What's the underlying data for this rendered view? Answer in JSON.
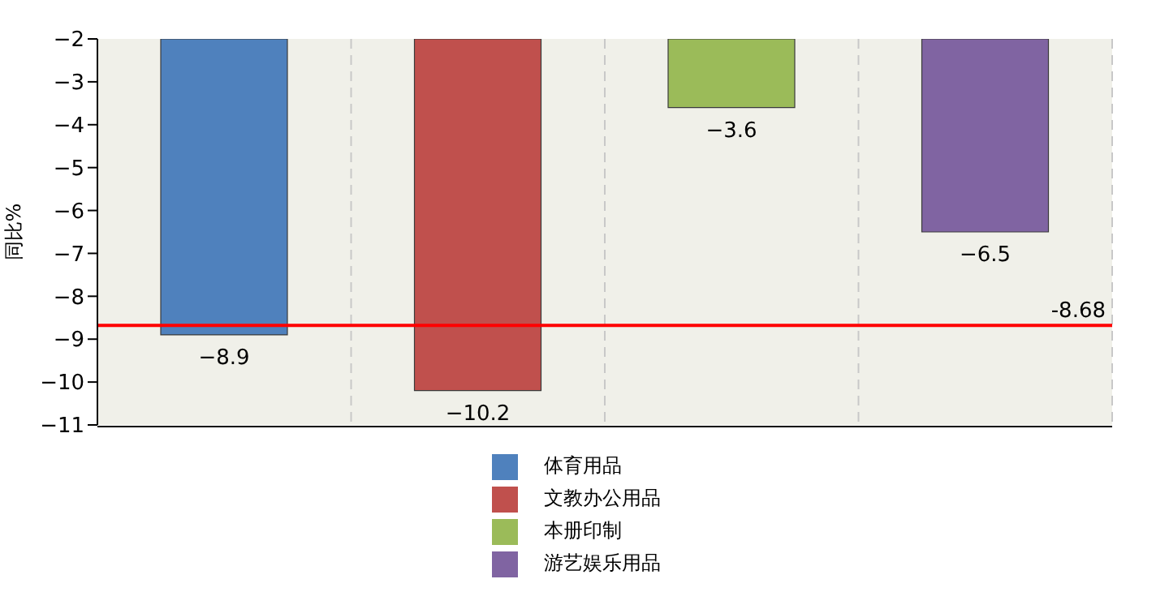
{
  "chart_data": {
    "type": "bar",
    "ylabel": "同比%",
    "categories": [
      null,
      null,
      null,
      null
    ],
    "series": [
      {
        "name": "体育用品",
        "color": "#4f81bd",
        "values": [
          -8.9,
          null,
          null,
          null
        ]
      },
      {
        "name": "文教办公用品",
        "color": "#c0504d",
        "values": [
          null,
          -10.2,
          null,
          null
        ]
      },
      {
        "name": "本册印制",
        "color": "#9bbb59",
        "values": [
          null,
          null,
          -3.6,
          null
        ]
      },
      {
        "name": "游艺娱乐用品",
        "color": "#8064a2",
        "values": [
          null,
          null,
          null,
          -6.5
        ]
      }
    ],
    "ylim": [
      -11,
      -2
    ],
    "yticks": [
      -11,
      -10,
      -9,
      -8,
      -7,
      -6,
      -5,
      -4,
      -3,
      -2
    ],
    "ref_lines": [
      {
        "axis": "y",
        "value": -8.68,
        "label": "-8.68",
        "color": "#ff0000"
      }
    ],
    "data_labels": true,
    "grid": "x",
    "legend": "bottom"
  }
}
